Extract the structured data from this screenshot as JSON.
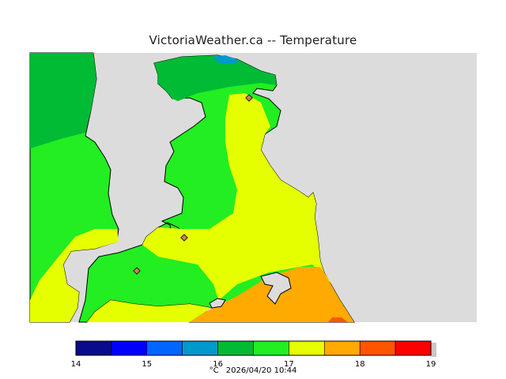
{
  "title": "VictoriaWeather.ca -- Temperature",
  "colors": {
    "land_gray": "#dcdcdc",
    "ocean": "#dcdcdc",
    "t16": "#00bb33",
    "t165": "#22ee22",
    "t17": "#e6ff00",
    "t175": "#ffaa00",
    "t18": "#ff5500",
    "station": "#c88060"
  },
  "legend": {
    "ticks": [
      "14",
      "15",
      "16",
      "17",
      "18",
      "19"
    ],
    "swatches": [
      "#0a0a8c",
      "#0000ff",
      "#0066ff",
      "#0099cc",
      "#00bb33",
      "#22ee22",
      "#e6ff00",
      "#ffaa00",
      "#ff5500",
      "#ff0000"
    ]
  },
  "footer": {
    "unit": "°C",
    "timestamp": "2026/04/20 10:44"
  }
}
